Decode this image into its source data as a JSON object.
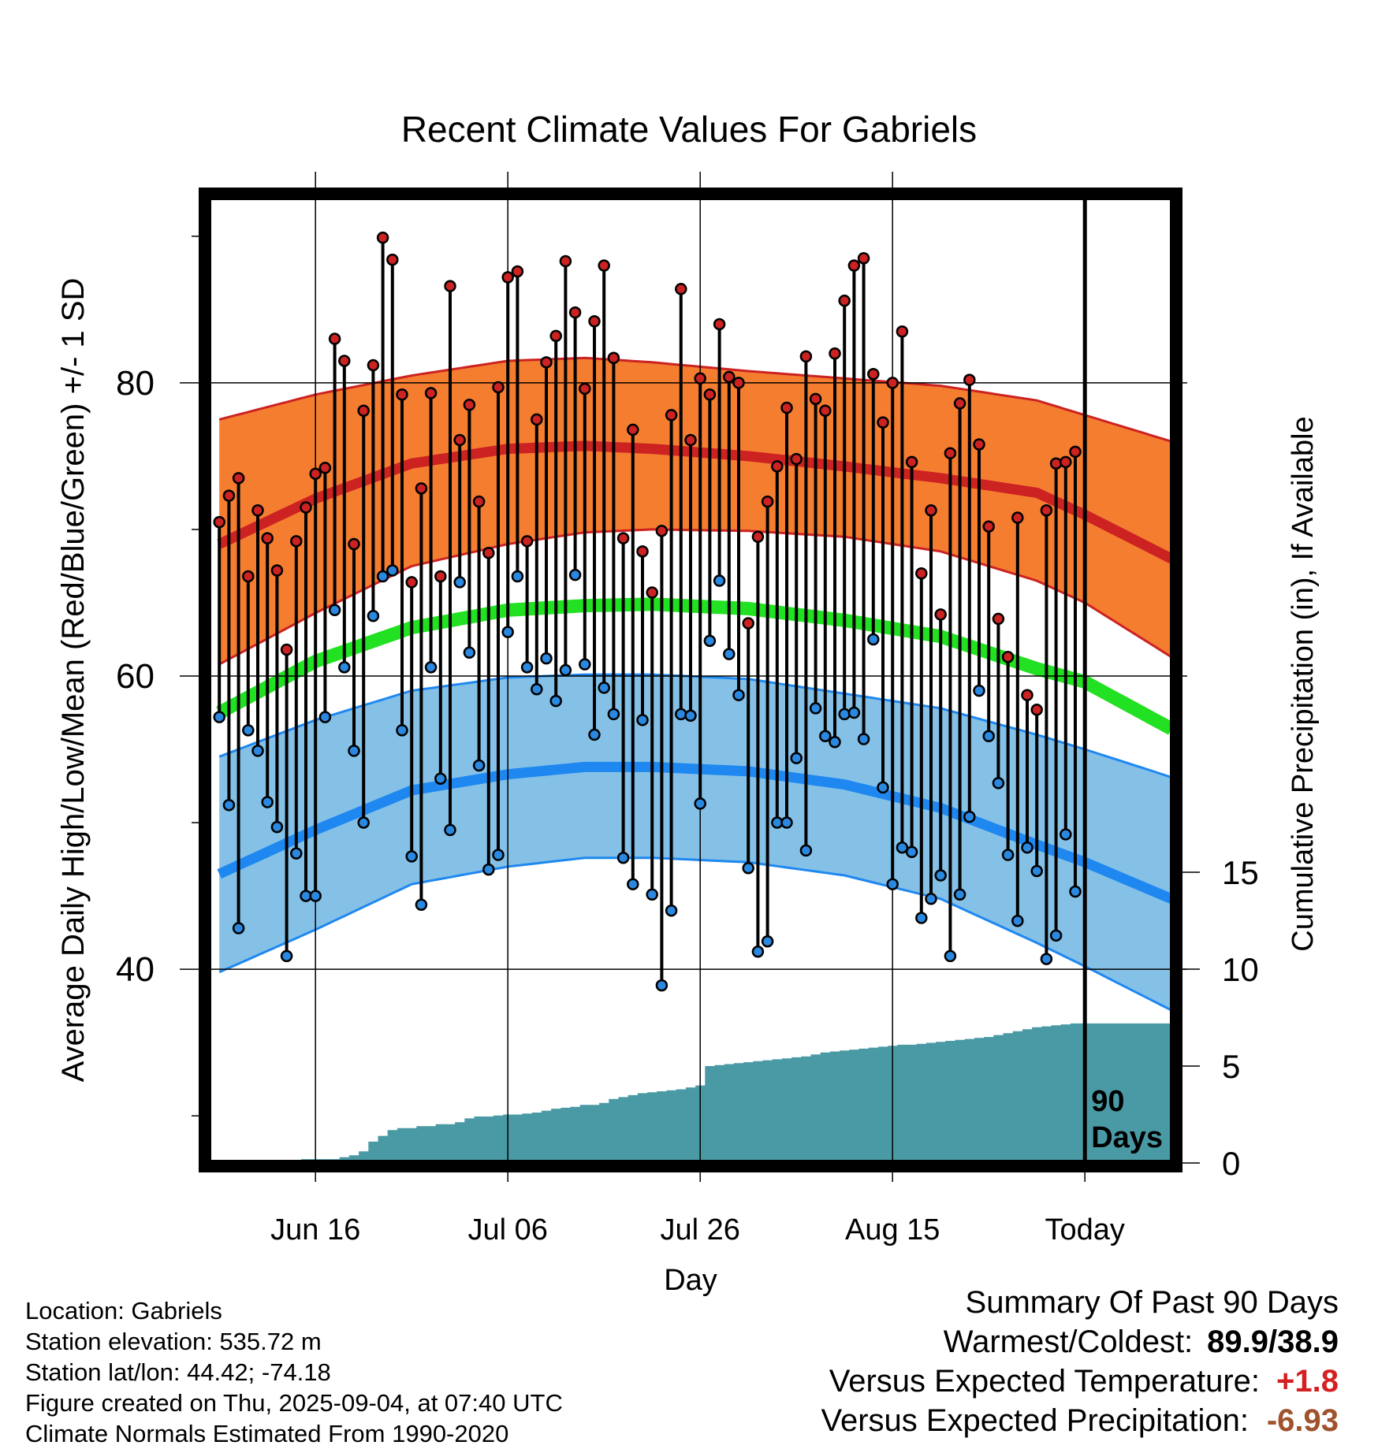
{
  "chart_data": {
    "type": "line",
    "title": "Recent Climate Values For Gabriels",
    "xlabel": "Day",
    "ylabel": "Average Daily High/Low/Mean (Red/Blue/Green) +/- 1 SD",
    "y2label": "Cumulative Precipitation (in), If Available",
    "ylim": [
      27,
      93
    ],
    "y2lim": [
      0,
      25
    ],
    "y_ticks": [
      40,
      60,
      80
    ],
    "y2_ticks": [
      0,
      5,
      10,
      15
    ],
    "x_ticks": [
      {
        "day": 10,
        "label": "Jun 16"
      },
      {
        "day": 30,
        "label": "Jul 06"
      },
      {
        "day": 50,
        "label": "Jul 26"
      },
      {
        "day": 70,
        "label": "Aug 15"
      },
      {
        "day": 90,
        "label": "Today"
      }
    ],
    "xlim": [
      -1,
      99
    ],
    "grid": true,
    "today_marker": {
      "day": 90,
      "label": "90 Days"
    },
    "normals": {
      "high_mean": [
        [
          0,
          69.0
        ],
        [
          10,
          72.1
        ],
        [
          20,
          74.5
        ],
        [
          30,
          75.5
        ],
        [
          38,
          75.7
        ],
        [
          45,
          75.5
        ],
        [
          55,
          75.0
        ],
        [
          65,
          74.3
        ],
        [
          75,
          73.5
        ],
        [
          85,
          72.5
        ],
        [
          90,
          71.0
        ],
        [
          99,
          68.0
        ]
      ],
      "high_plus_sd": [
        [
          0,
          77.5
        ],
        [
          10,
          79.2
        ],
        [
          20,
          80.5
        ],
        [
          30,
          81.5
        ],
        [
          38,
          81.7
        ],
        [
          45,
          81.4
        ],
        [
          55,
          80.8
        ],
        [
          65,
          80.3
        ],
        [
          75,
          79.8
        ],
        [
          85,
          78.8
        ],
        [
          90,
          77.8
        ],
        [
          99,
          76.0
        ]
      ],
      "high_minus_sd": [
        [
          0,
          60.8
        ],
        [
          10,
          64.3
        ],
        [
          20,
          67.5
        ],
        [
          30,
          69.0
        ],
        [
          38,
          69.8
        ],
        [
          45,
          70.0
        ],
        [
          55,
          69.9
        ],
        [
          65,
          69.5
        ],
        [
          75,
          68.5
        ],
        [
          85,
          66.5
        ],
        [
          90,
          65.0
        ],
        [
          99,
          61.3
        ]
      ],
      "mean": [
        [
          0,
          57.5
        ],
        [
          10,
          61.0
        ],
        [
          20,
          63.3
        ],
        [
          30,
          64.5
        ],
        [
          38,
          64.8
        ],
        [
          45,
          64.9
        ],
        [
          55,
          64.6
        ],
        [
          65,
          63.8
        ],
        [
          75,
          62.7
        ],
        [
          85,
          60.5
        ],
        [
          90,
          59.6
        ],
        [
          99,
          56.4
        ]
      ],
      "low_mean": [
        [
          0,
          46.5
        ],
        [
          10,
          49.5
        ],
        [
          20,
          52.2
        ],
        [
          30,
          53.3
        ],
        [
          38,
          53.8
        ],
        [
          45,
          53.8
        ],
        [
          55,
          53.5
        ],
        [
          65,
          52.6
        ],
        [
          75,
          51.0
        ],
        [
          85,
          48.5
        ],
        [
          90,
          47.3
        ],
        [
          99,
          44.8
        ]
      ],
      "low_plus_sd": [
        [
          0,
          54.5
        ],
        [
          10,
          57.0
        ],
        [
          20,
          59.0
        ],
        [
          30,
          59.9
        ],
        [
          38,
          60.1
        ],
        [
          45,
          60.1
        ],
        [
          55,
          59.8
        ],
        [
          65,
          58.8
        ],
        [
          75,
          57.8
        ],
        [
          85,
          56.0
        ],
        [
          90,
          55.0
        ],
        [
          99,
          53.1
        ]
      ],
      "low_minus_sd": [
        [
          0,
          39.8
        ],
        [
          10,
          42.7
        ],
        [
          20,
          45.8
        ],
        [
          30,
          47.0
        ],
        [
          38,
          47.6
        ],
        [
          45,
          47.6
        ],
        [
          55,
          47.3
        ],
        [
          65,
          46.4
        ],
        [
          75,
          44.8
        ],
        [
          85,
          41.8
        ],
        [
          90,
          40.2
        ],
        [
          99,
          37.2
        ]
      ]
    },
    "series": [
      {
        "name": "High",
        "color": "#cc2222",
        "values": [
          70.5,
          72.3,
          73.5,
          66.8,
          71.3,
          69.4,
          67.2,
          61.8,
          69.2,
          71.5,
          73.8,
          74.2,
          83.0,
          81.5,
          69.0,
          78.1,
          81.2,
          89.9,
          88.4,
          79.2,
          66.4,
          72.8,
          79.3,
          66.8,
          86.6,
          76.1,
          78.5,
          71.9,
          68.4,
          79.7,
          87.2,
          87.6,
          69.2,
          77.5,
          81.4,
          83.2,
          88.3,
          84.8,
          79.6,
          84.2,
          88.0,
          81.7,
          69.4,
          76.8,
          68.5,
          65.7,
          69.9,
          77.8,
          86.4,
          76.1,
          80.3,
          79.2,
          84.0,
          80.4,
          80.0,
          63.6,
          69.5,
          71.9,
          74.3,
          78.3,
          74.8,
          81.8,
          78.9,
          78.1,
          82.0,
          85.6,
          88.0,
          88.5,
          80.6,
          77.3,
          80.0,
          83.5,
          74.6,
          67.0,
          71.3,
          64.2,
          75.2,
          78.6,
          80.2,
          75.8,
          70.2,
          63.9,
          61.3,
          70.8,
          58.7,
          57.7,
          71.3,
          74.5,
          74.6,
          75.3
        ]
      },
      {
        "name": "Low",
        "color": "#2a88e0",
        "values": [
          57.2,
          51.2,
          42.8,
          56.3,
          54.9,
          51.4,
          49.7,
          40.9,
          47.9,
          45.0,
          45.0,
          57.2,
          64.5,
          60.6,
          54.9,
          50.0,
          64.1,
          66.8,
          67.2,
          56.3,
          47.7,
          44.4,
          60.6,
          53.0,
          49.5,
          66.4,
          61.6,
          53.9,
          46.8,
          47.8,
          63.0,
          66.8,
          60.6,
          59.1,
          61.2,
          58.3,
          60.4,
          66.9,
          60.8,
          56.0,
          59.2,
          57.4,
          47.6,
          45.8,
          57.0,
          45.1,
          38.9,
          44.0,
          57.4,
          57.3,
          51.3,
          62.4,
          66.5,
          61.5,
          58.7,
          46.9,
          41.2,
          41.9,
          50.0,
          50.0,
          54.4,
          48.1,
          57.8,
          55.9,
          55.5,
          57.4,
          57.5,
          55.7,
          62.5,
          52.4,
          45.8,
          48.3,
          48.0,
          43.5,
          44.8,
          46.4,
          40.9,
          45.1,
          50.4,
          59.0,
          55.9,
          52.7,
          47.8,
          43.3,
          48.3,
          46.7,
          40.7,
          42.3,
          49.2,
          45.3
        ]
      }
    ],
    "precipitation": {
      "name": "Cumulative Precipitation",
      "color": "#4a9aa5",
      "values": [
        0.0,
        0.0,
        0.0,
        0.0,
        0.1,
        0.15,
        0.15,
        0.15,
        0.15,
        0.2,
        0.2,
        0.2,
        0.2,
        0.3,
        0.4,
        0.6,
        1.1,
        1.4,
        1.7,
        1.8,
        1.8,
        1.9,
        1.9,
        2.0,
        2.0,
        2.1,
        2.3,
        2.4,
        2.4,
        2.45,
        2.5,
        2.5,
        2.55,
        2.6,
        2.7,
        2.8,
        2.85,
        2.9,
        3.0,
        3.0,
        3.1,
        3.3,
        3.4,
        3.5,
        3.6,
        3.65,
        3.7,
        3.75,
        3.8,
        3.9,
        4.0,
        5.0,
        5.05,
        5.1,
        5.15,
        5.2,
        5.25,
        5.3,
        5.35,
        5.4,
        5.45,
        5.5,
        5.6,
        5.7,
        5.75,
        5.8,
        5.85,
        5.9,
        5.95,
        6.0,
        6.05,
        6.1,
        6.1,
        6.15,
        6.2,
        6.25,
        6.3,
        6.35,
        6.4,
        6.45,
        6.5,
        6.6,
        6.7,
        6.8,
        6.9,
        7.0,
        7.05,
        7.1,
        7.15,
        7.2,
        7.2,
        7.2,
        7.2,
        7.2,
        7.2,
        7.2,
        7.2,
        7.2,
        7.2,
        7.2
      ]
    },
    "colors": {
      "high_band": "#f47d30",
      "high_line": "#cc2222",
      "mean_line": "#22e022",
      "low_band": "#85c1e7",
      "low_line": "#1e88f0",
      "precip": "#4a9aa5"
    }
  },
  "footer": {
    "location": "Location: Gabriels",
    "elevation": "Station elevation: 535.72 m",
    "latlon": "Station lat/lon: 44.42; -74.18",
    "created": "Figure created on Thu, 2025-09-04, at 07:40 UTC",
    "normals": "Climate Normals Estimated From 1990-2020"
  },
  "summary": {
    "title": "Summary Of Past 90 Days",
    "warmest_label": "Warmest/Coldest:",
    "warmest_value": "89.9/38.9",
    "temp_label": "Versus Expected Temperature:",
    "temp_value": "+1.8",
    "temp_color": "#d42020",
    "precip_label": "Versus Expected Precipitation:",
    "precip_value": "-6.93",
    "precip_color": "#a0522d"
  }
}
